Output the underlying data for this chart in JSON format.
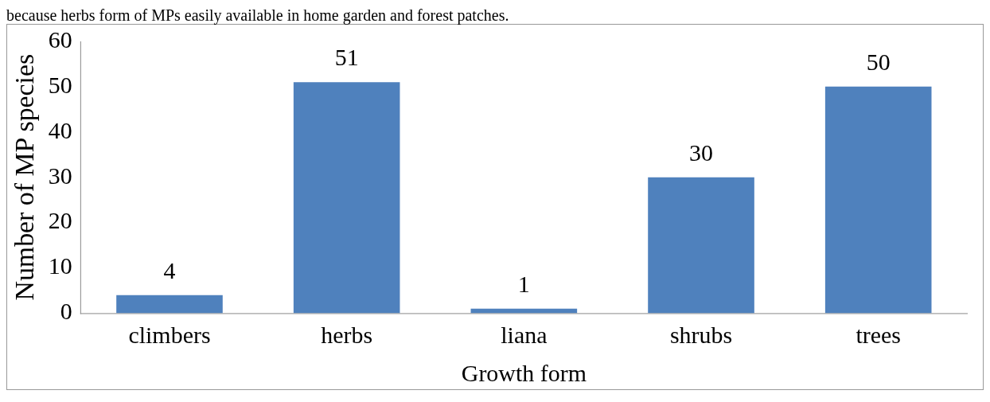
{
  "chart_data": {
    "type": "bar",
    "xlabel": "Growth form",
    "ylabel": "Number of MP species",
    "annotations": [
      "because herbs form of MPs easily available in home garden and forest patches."
    ],
    "categories": [
      "climbers",
      "herbs",
      "liana",
      "shrubs",
      "trees"
    ],
    "values": [
      4,
      51,
      1,
      30,
      50
    ],
    "color": "#4f81bd",
    "ylim": [
      0,
      60
    ],
    "yticks": [
      0,
      10,
      20,
      30,
      40,
      50,
      60
    ],
    "grid": false,
    "legend": false,
    "data_labels": true
  }
}
